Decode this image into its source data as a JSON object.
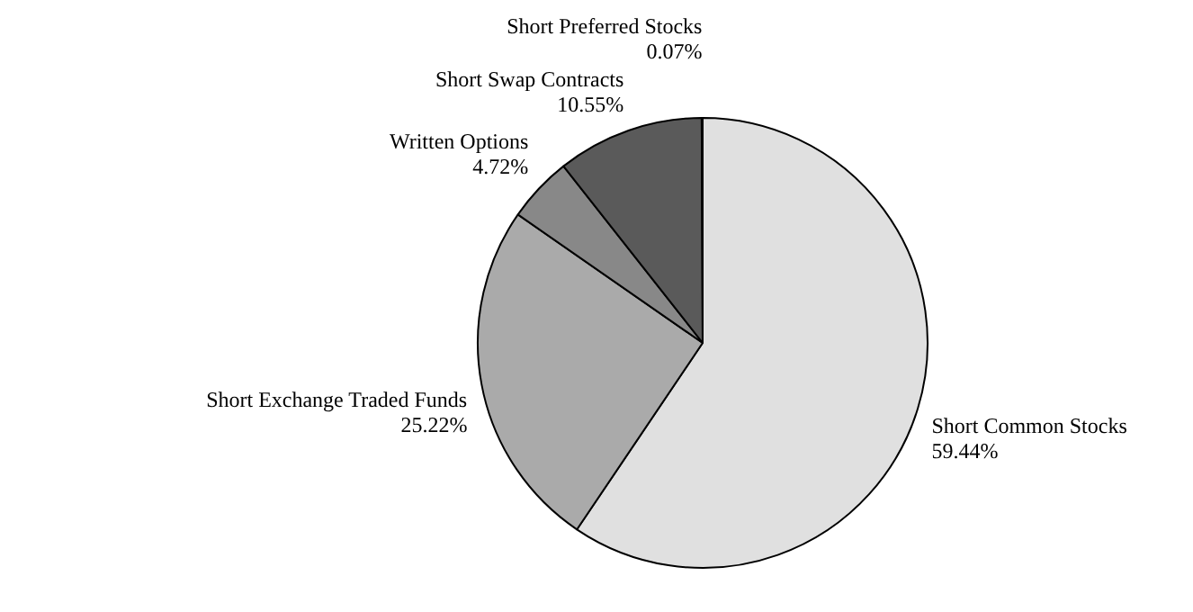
{
  "chart_data": {
    "type": "pie",
    "categories": [
      "Short Common Stocks",
      "Short Exchange Traded Funds",
      "Written Options",
      "Short Swap Contracts",
      "Short Preferred Stocks"
    ],
    "values": [
      59.44,
      25.22,
      4.72,
      10.55,
      0.07
    ],
    "value_labels": [
      "59.44%",
      "25.22%",
      "4.72%",
      "10.55%",
      "0.07%"
    ],
    "colors": [
      "#e0e0e0",
      "#aaaaaa",
      "#888888",
      "#5a5a5a",
      "#333333"
    ]
  }
}
